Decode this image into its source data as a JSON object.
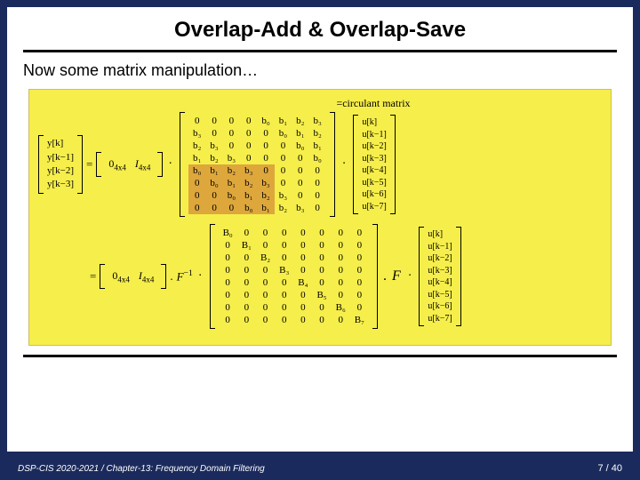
{
  "title": "Overlap-Add & Overlap-Save",
  "subtitle": "Now some matrix manipulation…",
  "circulant_label": "=circulant matrix",
  "footer_left": "DSP-CIS 2020-2021 / Chapter-13: Frequency Domain Filtering",
  "footer_right": "7 / 40",
  "colors": {
    "slide_bg": "#1a2a5c",
    "panel_bg": "#f6ee4a",
    "highlight": "#d99a3a"
  },
  "eq1": {
    "y_vec": [
      "y[k]",
      "y[k−1]",
      "y[k−2]",
      "y[k−3]"
    ],
    "select_block": [
      "0",
      "I"
    ],
    "select_sub": "4x4",
    "big_matrix_cols": 8,
    "big_matrix": [
      [
        "0",
        "0",
        "0",
        "0",
        "b₀",
        "b₁",
        "b₂",
        "b₃"
      ],
      [
        "b₃",
        "0",
        "0",
        "0",
        "0",
        "b₀",
        "b₁",
        "b₂"
      ],
      [
        "b₂",
        "b₃",
        "0",
        "0",
        "0",
        "0",
        "b₀",
        "b₁"
      ],
      [
        "b₁",
        "b₂",
        "b₃",
        "0",
        "0",
        "0",
        "0",
        "b₀"
      ],
      [
        "b₀",
        "b₁",
        "b₂",
        "b₃",
        "0",
        "0",
        "0",
        "0"
      ],
      [
        "0",
        "b₀",
        "b₁",
        "b₂",
        "b₃",
        "0",
        "0",
        "0"
      ],
      [
        "0",
        "0",
        "b₀",
        "b₁",
        "b₂",
        "b₃",
        "0",
        "0"
      ],
      [
        "0",
        "0",
        "0",
        "b₀",
        "b₁",
        "b₂",
        "b₃",
        "0"
      ]
    ],
    "highlight_rows": [
      4,
      5,
      6,
      7
    ],
    "highlight_cols": [
      0,
      1,
      2,
      3,
      4
    ],
    "u_vec": [
      "u[k]",
      "u[k−1]",
      "u[k−2]",
      "u[k−3]",
      "u[k−4]",
      "u[k−5]",
      "u[k−6]",
      "u[k−7]"
    ]
  },
  "eq2": {
    "select_block": [
      "0",
      "I"
    ],
    "select_sub": "4x4",
    "F_inv": "F",
    "F_inv_sup": "−1",
    "diag_cols": 8,
    "diag": [
      [
        "B₀",
        "0",
        "0",
        "0",
        "0",
        "0",
        "0",
        "0"
      ],
      [
        "0",
        "B₁",
        "0",
        "0",
        "0",
        "0",
        "0",
        "0"
      ],
      [
        "0",
        "0",
        "B₂",
        "0",
        "0",
        "0",
        "0",
        "0"
      ],
      [
        "0",
        "0",
        "0",
        "B₃",
        "0",
        "0",
        "0",
        "0"
      ],
      [
        "0",
        "0",
        "0",
        "0",
        "B₄",
        "0",
        "0",
        "0"
      ],
      [
        "0",
        "0",
        "0",
        "0",
        "0",
        "B₅",
        "0",
        "0"
      ],
      [
        "0",
        "0",
        "0",
        "0",
        "0",
        "0",
        "B₆",
        "0"
      ],
      [
        "0",
        "0",
        "0",
        "0",
        "0",
        "0",
        "0",
        "B₇"
      ]
    ],
    "F": "F",
    "u_vec": [
      "u[k]",
      "u[k−1]",
      "u[k−2]",
      "u[k−3]",
      "u[k−4]",
      "u[k−5]",
      "u[k−6]",
      "u[k−7]"
    ]
  }
}
